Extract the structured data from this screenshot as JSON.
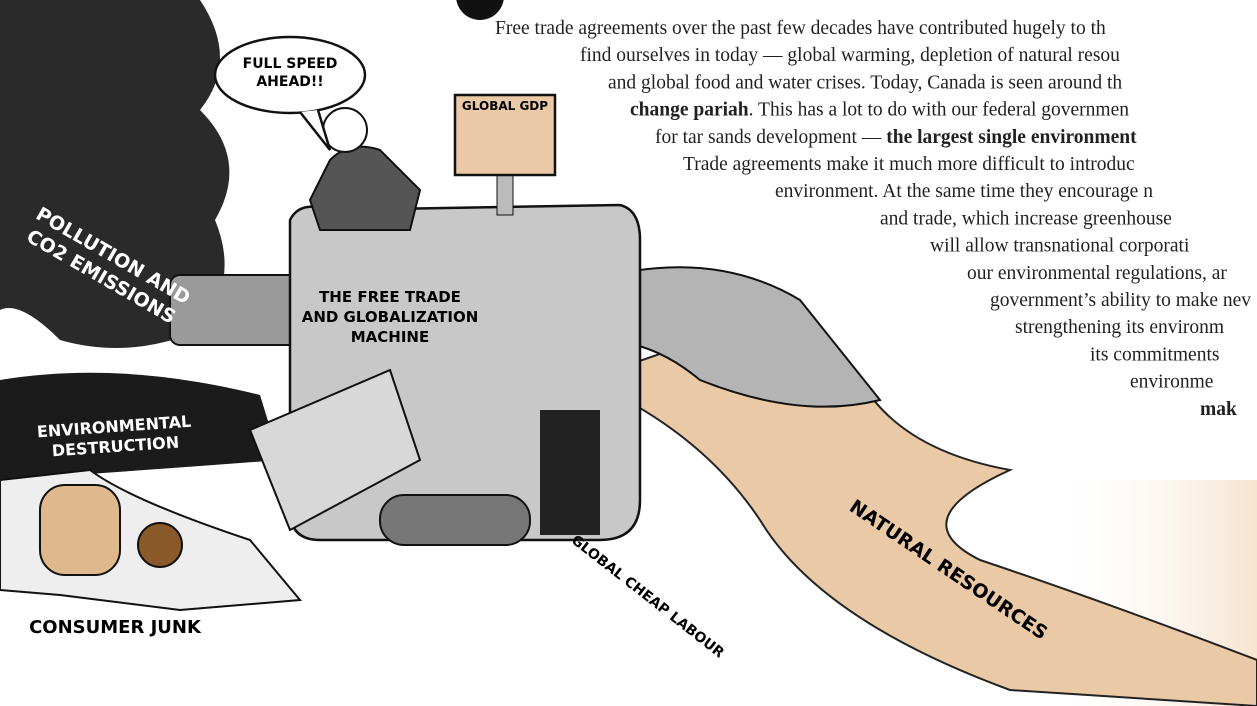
{
  "illustration": {
    "bubble": [
      "FULL SPEED",
      "AHEAD!!"
    ],
    "gdp_sign": "GLOBAL GDP",
    "machine": [
      "THE FREE TRADE",
      "AND GLOBALIZATION",
      "MACHINE"
    ],
    "pollution": [
      "POLLUTION AND",
      "CO2 EMISSIONS"
    ],
    "destruction": [
      "ENVIRONMENTAL",
      "DESTRUCTION"
    ],
    "junk": "CONSUMER JUNK",
    "labour": "GLOBAL CHEAP LABOUR",
    "resources": "NATURAL RESOURCES"
  },
  "paragraph": {
    "lines": [
      [
        {
          "text": "Free trade agreements over the past few decades have contributed hugely to th",
          "bold": false
        }
      ],
      [
        {
          "text": "find ourselves in today — global warming, depletion of natural resou",
          "bold": false
        }
      ],
      [
        {
          "text": "and global food and water crises. Today, Canada is seen around th",
          "bold": false
        }
      ],
      [
        {
          "text": "change pariah",
          "bold": true
        },
        {
          "text": ". This has a lot to do with our federal governmen",
          "bold": false
        }
      ],
      [
        {
          "text": "for tar sands development — ",
          "bold": false
        },
        {
          "text": "the largest single environment",
          "bold": true
        }
      ],
      [
        {
          "text": "Trade agreements make it much more difficult to introduc",
          "bold": false
        }
      ],
      [
        {
          "text": "environment. At the same time they encourage n",
          "bold": false
        }
      ],
      [
        {
          "text": "and trade, which increase greenhouse",
          "bold": false
        }
      ],
      [
        {
          "text": "will allow transnational corporati",
          "bold": false
        }
      ],
      [
        {
          "text": "our environmental regulations, ar",
          "bold": false
        }
      ],
      [
        {
          "text": "government’s ability to make nev",
          "bold": false
        }
      ],
      [
        {
          "text": "strengthening its environm",
          "bold": false
        }
      ],
      [
        {
          "text": "its commitments",
          "bold": false
        }
      ],
      [
        {
          "text": "environme",
          "bold": false
        }
      ],
      [
        {
          "text": "mak",
          "bold": true
        }
      ]
    ]
  }
}
